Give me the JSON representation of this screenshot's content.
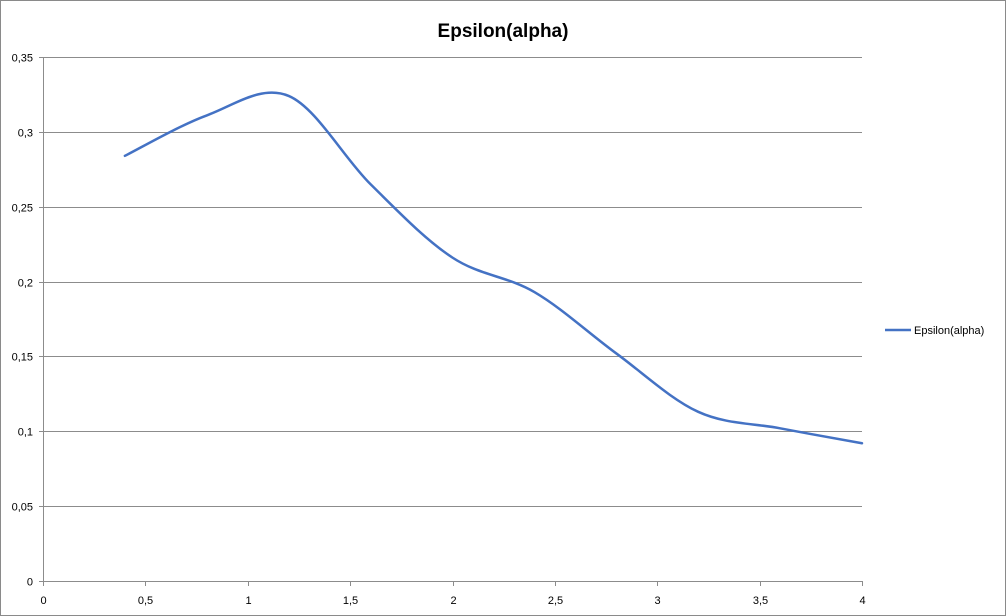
{
  "chart_data": {
    "type": "line",
    "title": "Epsilon(alpha)",
    "xlabel": "",
    "ylabel": "",
    "xlim": [
      0,
      4
    ],
    "ylim": [
      0,
      0.35
    ],
    "x_ticks": [
      0,
      0.5,
      1,
      1.5,
      2,
      2.5,
      3,
      3.5,
      4
    ],
    "x_tick_labels": [
      "0",
      "0,5",
      "1",
      "1,5",
      "2",
      "2,5",
      "3",
      "3,5",
      "4"
    ],
    "y_ticks": [
      0,
      0.05,
      0.1,
      0.15,
      0.2,
      0.25,
      0.3,
      0.35
    ],
    "y_tick_labels": [
      "0",
      "0,05",
      "0,1",
      "0,15",
      "0,2",
      "0,25",
      "0,3",
      "0,35"
    ],
    "grid": "horizontal",
    "legend_position": "right",
    "smooth": true,
    "series": [
      {
        "name": "Epsilon(alpha)",
        "color": "#4472c4",
        "x": [
          0.4,
          0.8,
          1.2,
          1.6,
          2.0,
          2.4,
          2.8,
          3.2,
          3.6,
          4.0
        ],
        "y": [
          0.284,
          0.311,
          0.324,
          0.265,
          0.216,
          0.193,
          0.152,
          0.113,
          0.102,
          0.092
        ]
      }
    ]
  }
}
